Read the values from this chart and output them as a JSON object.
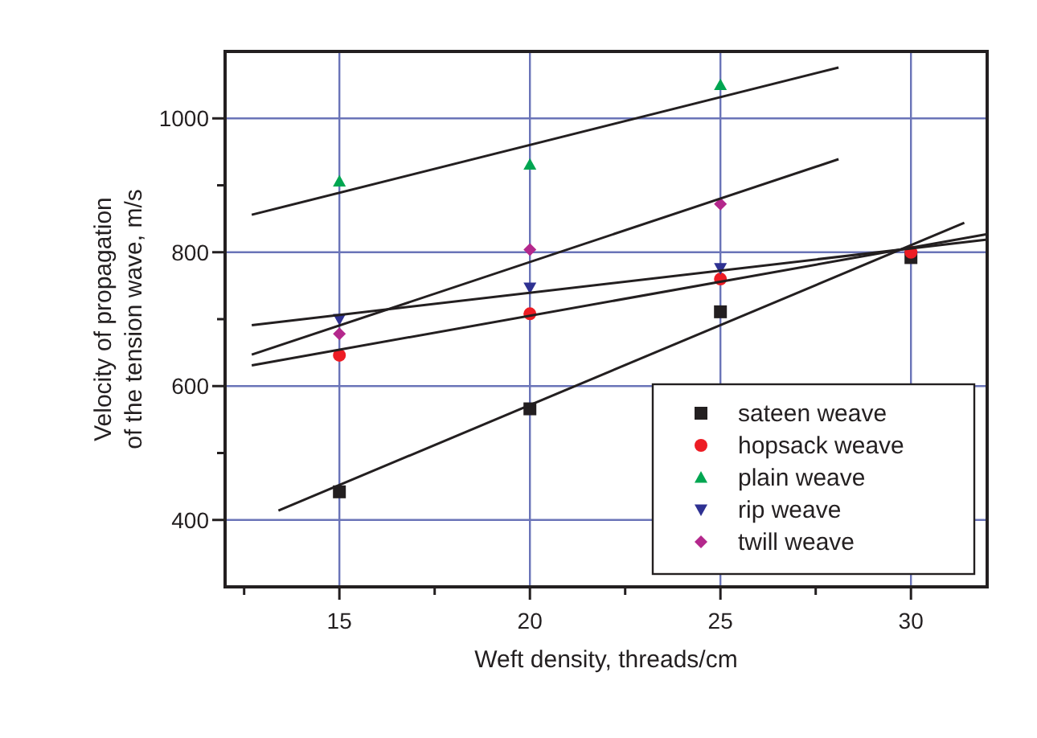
{
  "chart_data": {
    "type": "scatter",
    "xlabel": "Weft density, threads/cm",
    "ylabel": "Velocity of propagation\nof the tension wave, m/s",
    "xlim": [
      12,
      32
    ],
    "xticks": [
      {
        "value": 12.5,
        "label": null
      },
      15,
      {
        "value": 17.5,
        "label": null
      },
      20,
      {
        "value": 22.5,
        "label": null
      },
      25,
      {
        "value": 27.5,
        "label": null
      },
      30
    ],
    "ylim": [
      300,
      1100
    ],
    "yticks": [
      400,
      {
        "value": 500,
        "label": null
      },
      600,
      {
        "value": 700,
        "label": null
      },
      800,
      {
        "value": 900,
        "label": null
      },
      1000
    ],
    "grid": true,
    "legend": "bottom right",
    "series": [
      {
        "name": "sateen weave",
        "color": "#231f20",
        "marker": "square",
        "x": [
          15,
          20,
          25,
          30
        ],
        "values": [
          442,
          566,
          711,
          792
        ]
      },
      {
        "name": "hopsack weave",
        "color": "#ed1c24",
        "marker": "circle",
        "x": [
          15,
          20,
          25,
          30
        ],
        "values": [
          646,
          708,
          760,
          800
        ]
      },
      {
        "name": "plain weave",
        "color": "#00a651",
        "marker": "triangle",
        "x": [
          15,
          20,
          25
        ],
        "values": [
          906,
          931,
          1050
        ]
      },
      {
        "name": "rip weave",
        "color": "#2e3192",
        "marker": "triangle-down",
        "x": [
          15,
          20,
          25
        ],
        "values": [
          700,
          747,
          776
        ]
      },
      {
        "name": "twill weave",
        "color": "#b4288c",
        "marker": "diamond",
        "x": [
          15,
          20,
          25
        ],
        "values": [
          678,
          804,
          872
        ]
      },
      {
        "type": "line",
        "color": "#231f20",
        "marker": "none",
        "x": [
          13.4,
          31.4
        ],
        "values": [
          414,
          844
        ]
      },
      {
        "type": "line",
        "color": "#231f20",
        "marker": "none",
        "x": [
          12.7,
          32
        ],
        "values": [
          631,
          827
        ]
      },
      {
        "type": "line",
        "color": "#231f20",
        "marker": "none",
        "x": [
          12.7,
          28.1
        ],
        "values": [
          856,
          1076
        ]
      },
      {
        "type": "line",
        "color": "#231f20",
        "marker": "none",
        "x": [
          12.7,
          32
        ],
        "values": [
          691,
          819
        ]
      },
      {
        "type": "line",
        "color": "#231f20",
        "marker": "none",
        "x": [
          12.7,
          28.1
        ],
        "values": [
          647,
          939
        ]
      }
    ]
  }
}
